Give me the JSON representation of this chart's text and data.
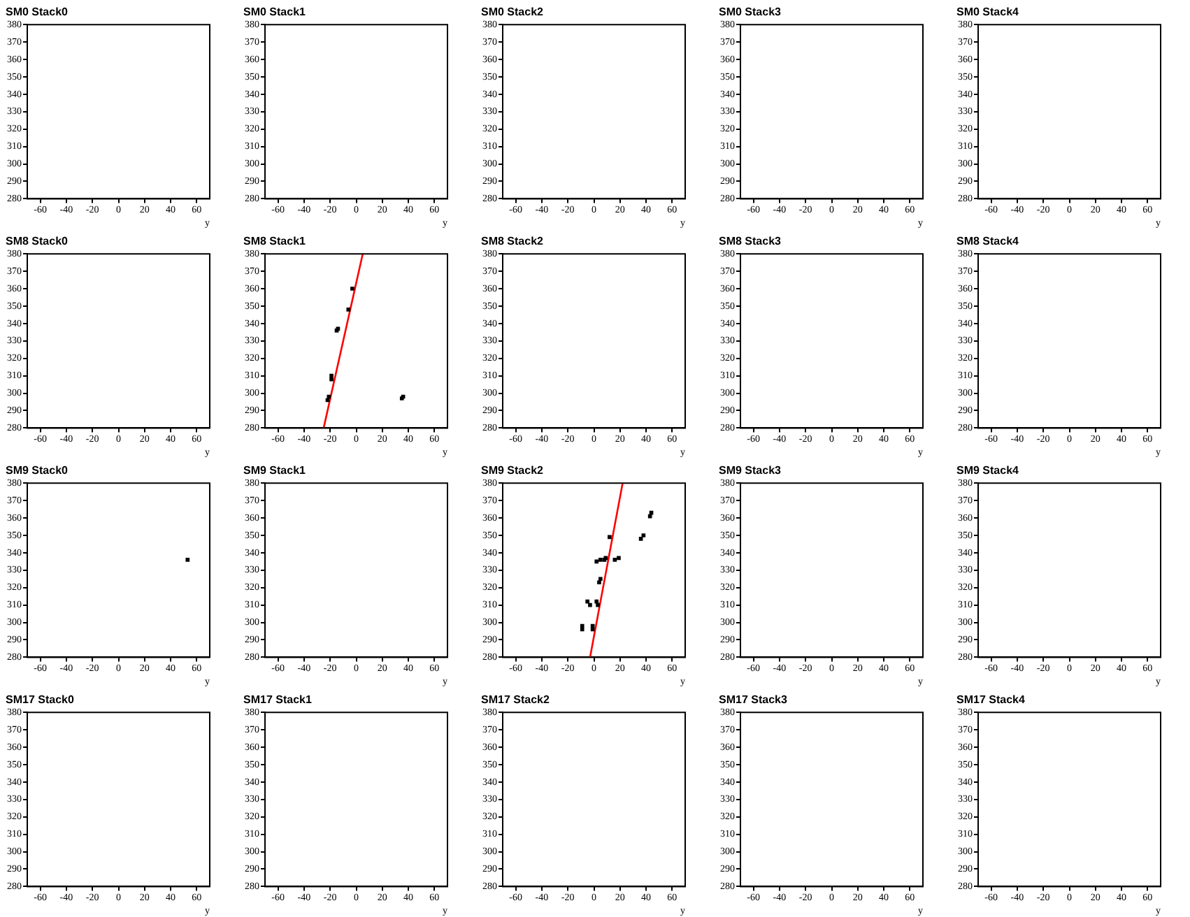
{
  "chart_data": [
    {
      "type": "scatter",
      "title": "SM0 Stack0",
      "xlabel": "y",
      "xlim": [
        -70,
        70
      ],
      "ylim": [
        280,
        380
      ],
      "xticks": [
        -60,
        -40,
        -20,
        0,
        20,
        40,
        60
      ],
      "yticks": [
        280,
        290,
        300,
        310,
        320,
        330,
        340,
        350,
        360,
        370,
        380
      ]
    },
    {
      "type": "scatter",
      "title": "SM0 Stack1",
      "xlabel": "y",
      "xlim": [
        -70,
        70
      ],
      "ylim": [
        280,
        380
      ],
      "xticks": [
        -60,
        -40,
        -20,
        0,
        20,
        40,
        60
      ],
      "yticks": [
        280,
        290,
        300,
        310,
        320,
        330,
        340,
        350,
        360,
        370,
        380
      ]
    },
    {
      "type": "scatter",
      "title": "SM0 Stack2",
      "xlabel": "y",
      "xlim": [
        -70,
        70
      ],
      "ylim": [
        280,
        380
      ],
      "xticks": [
        -60,
        -40,
        -20,
        0,
        20,
        40,
        60
      ],
      "yticks": [
        280,
        290,
        300,
        310,
        320,
        330,
        340,
        350,
        360,
        370,
        380
      ]
    },
    {
      "type": "scatter",
      "title": "SM0 Stack3",
      "xlabel": "y",
      "xlim": [
        -70,
        70
      ],
      "ylim": [
        280,
        380
      ],
      "xticks": [
        -60,
        -40,
        -20,
        0,
        20,
        40,
        60
      ],
      "yticks": [
        280,
        290,
        300,
        310,
        320,
        330,
        340,
        350,
        360,
        370,
        380
      ]
    },
    {
      "type": "scatter",
      "title": "SM0 Stack4",
      "xlabel": "y",
      "xlim": [
        -70,
        70
      ],
      "ylim": [
        280,
        380
      ],
      "xticks": [
        -60,
        -40,
        -20,
        0,
        20,
        40,
        60
      ],
      "yticks": [
        280,
        290,
        300,
        310,
        320,
        330,
        340,
        350,
        360,
        370,
        380
      ]
    },
    {
      "type": "scatter",
      "title": "SM8 Stack0",
      "xlabel": "y",
      "xlim": [
        -70,
        70
      ],
      "ylim": [
        280,
        380
      ],
      "xticks": [
        -60,
        -40,
        -20,
        0,
        20,
        40,
        60
      ],
      "yticks": [
        280,
        290,
        300,
        310,
        320,
        330,
        340,
        350,
        360,
        370,
        380
      ]
    },
    {
      "type": "scatter",
      "title": "SM8 Stack1",
      "xlabel": "y",
      "xlim": [
        -70,
        70
      ],
      "ylim": [
        280,
        380
      ],
      "xticks": [
        -60,
        -40,
        -20,
        0,
        20,
        40,
        60
      ],
      "yticks": [
        280,
        290,
        300,
        310,
        320,
        330,
        340,
        350,
        360,
        370,
        380
      ],
      "series": [
        {
          "color": "#000000",
          "marker": "square",
          "x": [
            -3,
            -6,
            -15,
            -14,
            -19,
            -19,
            -21,
            -22,
            35,
            36
          ],
          "values": [
            360,
            348,
            336,
            337,
            310,
            308,
            298,
            296,
            297,
            298
          ]
        },
        {
          "type": "line",
          "color": "#ff0000",
          "x": [
            -25,
            5
          ],
          "values": [
            280,
            380
          ]
        }
      ]
    },
    {
      "type": "scatter",
      "title": "SM8 Stack2",
      "xlabel": "y",
      "xlim": [
        -70,
        70
      ],
      "ylim": [
        280,
        380
      ],
      "xticks": [
        -60,
        -40,
        -20,
        0,
        20,
        40,
        60
      ],
      "yticks": [
        280,
        290,
        300,
        310,
        320,
        330,
        340,
        350,
        360,
        370,
        380
      ]
    },
    {
      "type": "scatter",
      "title": "SM8 Stack3",
      "xlabel": "y",
      "xlim": [
        -70,
        70
      ],
      "ylim": [
        280,
        380
      ],
      "xticks": [
        -60,
        -40,
        -20,
        0,
        20,
        40,
        60
      ],
      "yticks": [
        280,
        290,
        300,
        310,
        320,
        330,
        340,
        350,
        360,
        370,
        380
      ]
    },
    {
      "type": "scatter",
      "title": "SM8 Stack4",
      "xlabel": "y",
      "xlim": [
        -70,
        70
      ],
      "ylim": [
        280,
        380
      ],
      "xticks": [
        -60,
        -40,
        -20,
        0,
        20,
        40,
        60
      ],
      "yticks": [
        280,
        290,
        300,
        310,
        320,
        330,
        340,
        350,
        360,
        370,
        380
      ]
    },
    {
      "type": "scatter",
      "title": "SM9 Stack0",
      "xlabel": "y",
      "xlim": [
        -70,
        70
      ],
      "ylim": [
        280,
        380
      ],
      "xticks": [
        -60,
        -40,
        -20,
        0,
        20,
        40,
        60
      ],
      "yticks": [
        280,
        290,
        300,
        310,
        320,
        330,
        340,
        350,
        360,
        370,
        380
      ],
      "series": [
        {
          "color": "#000000",
          "marker": "square",
          "x": [
            53
          ],
          "values": [
            336
          ]
        }
      ]
    },
    {
      "type": "scatter",
      "title": "SM9 Stack1",
      "xlabel": "y",
      "xlim": [
        -70,
        70
      ],
      "ylim": [
        280,
        380
      ],
      "xticks": [
        -60,
        -40,
        -20,
        0,
        20,
        40,
        60
      ],
      "yticks": [
        280,
        290,
        300,
        310,
        320,
        330,
        340,
        350,
        360,
        370,
        380
      ]
    },
    {
      "type": "scatter",
      "title": "SM9 Stack2",
      "xlabel": "y",
      "xlim": [
        -70,
        70
      ],
      "ylim": [
        280,
        380
      ],
      "xticks": [
        -60,
        -40,
        -20,
        0,
        20,
        40,
        60
      ],
      "yticks": [
        280,
        290,
        300,
        310,
        320,
        330,
        340,
        350,
        360,
        370,
        380
      ],
      "series": [
        {
          "color": "#000000",
          "marker": "square",
          "x": [
            -9,
            -9,
            -1,
            -1,
            -5,
            -3,
            2,
            3,
            4,
            5,
            2,
            5,
            8,
            9,
            12,
            16,
            19,
            36,
            38,
            43,
            44
          ],
          "values": [
            298,
            296,
            298,
            296,
            312,
            310,
            312,
            310,
            323,
            325,
            335,
            336,
            336,
            337,
            349,
            336,
            337,
            348,
            350,
            361,
            363
          ]
        },
        {
          "type": "line",
          "color": "#ff0000",
          "x": [
            -3,
            22
          ],
          "values": [
            280,
            380
          ]
        }
      ]
    },
    {
      "type": "scatter",
      "title": "SM9 Stack3",
      "xlabel": "y",
      "xlim": [
        -70,
        70
      ],
      "ylim": [
        280,
        380
      ],
      "xticks": [
        -60,
        -40,
        -20,
        0,
        20,
        40,
        60
      ],
      "yticks": [
        280,
        290,
        300,
        310,
        320,
        330,
        340,
        350,
        360,
        370,
        380
      ]
    },
    {
      "type": "scatter",
      "title": "SM9 Stack4",
      "xlabel": "y",
      "xlim": [
        -70,
        70
      ],
      "ylim": [
        280,
        380
      ],
      "xticks": [
        -60,
        -40,
        -20,
        0,
        20,
        40,
        60
      ],
      "yticks": [
        280,
        290,
        300,
        310,
        320,
        330,
        340,
        350,
        360,
        370,
        380
      ]
    },
    {
      "type": "scatter",
      "title": "SM17 Stack0",
      "xlabel": "y",
      "xlim": [
        -70,
        70
      ],
      "ylim": [
        280,
        380
      ],
      "xticks": [
        -60,
        -40,
        -20,
        0,
        20,
        40,
        60
      ],
      "yticks": [
        280,
        290,
        300,
        310,
        320,
        330,
        340,
        350,
        360,
        370,
        380
      ]
    },
    {
      "type": "scatter",
      "title": "SM17 Stack1",
      "xlabel": "y",
      "xlim": [
        -70,
        70
      ],
      "ylim": [
        280,
        380
      ],
      "xticks": [
        -60,
        -40,
        -20,
        0,
        20,
        40,
        60
      ],
      "yticks": [
        280,
        290,
        300,
        310,
        320,
        330,
        340,
        350,
        360,
        370,
        380
      ]
    },
    {
      "type": "scatter",
      "title": "SM17 Stack2",
      "xlabel": "y",
      "xlim": [
        -70,
        70
      ],
      "ylim": [
        280,
        380
      ],
      "xticks": [
        -60,
        -40,
        -20,
        0,
        20,
        40,
        60
      ],
      "yticks": [
        280,
        290,
        300,
        310,
        320,
        330,
        340,
        350,
        360,
        370,
        380
      ]
    },
    {
      "type": "scatter",
      "title": "SM17 Stack3",
      "xlabel": "y",
      "xlim": [
        -70,
        70
      ],
      "ylim": [
        280,
        380
      ],
      "xticks": [
        -60,
        -40,
        -20,
        0,
        20,
        40,
        60
      ],
      "yticks": [
        280,
        290,
        300,
        310,
        320,
        330,
        340,
        350,
        360,
        370,
        380
      ]
    },
    {
      "type": "scatter",
      "title": "SM17 Stack4",
      "xlabel": "y",
      "xlim": [
        -70,
        70
      ],
      "ylim": [
        280,
        380
      ],
      "xticks": [
        -60,
        -40,
        -20,
        0,
        20,
        40,
        60
      ],
      "yticks": [
        280,
        290,
        300,
        310,
        320,
        330,
        340,
        350,
        360,
        370,
        380
      ]
    }
  ]
}
